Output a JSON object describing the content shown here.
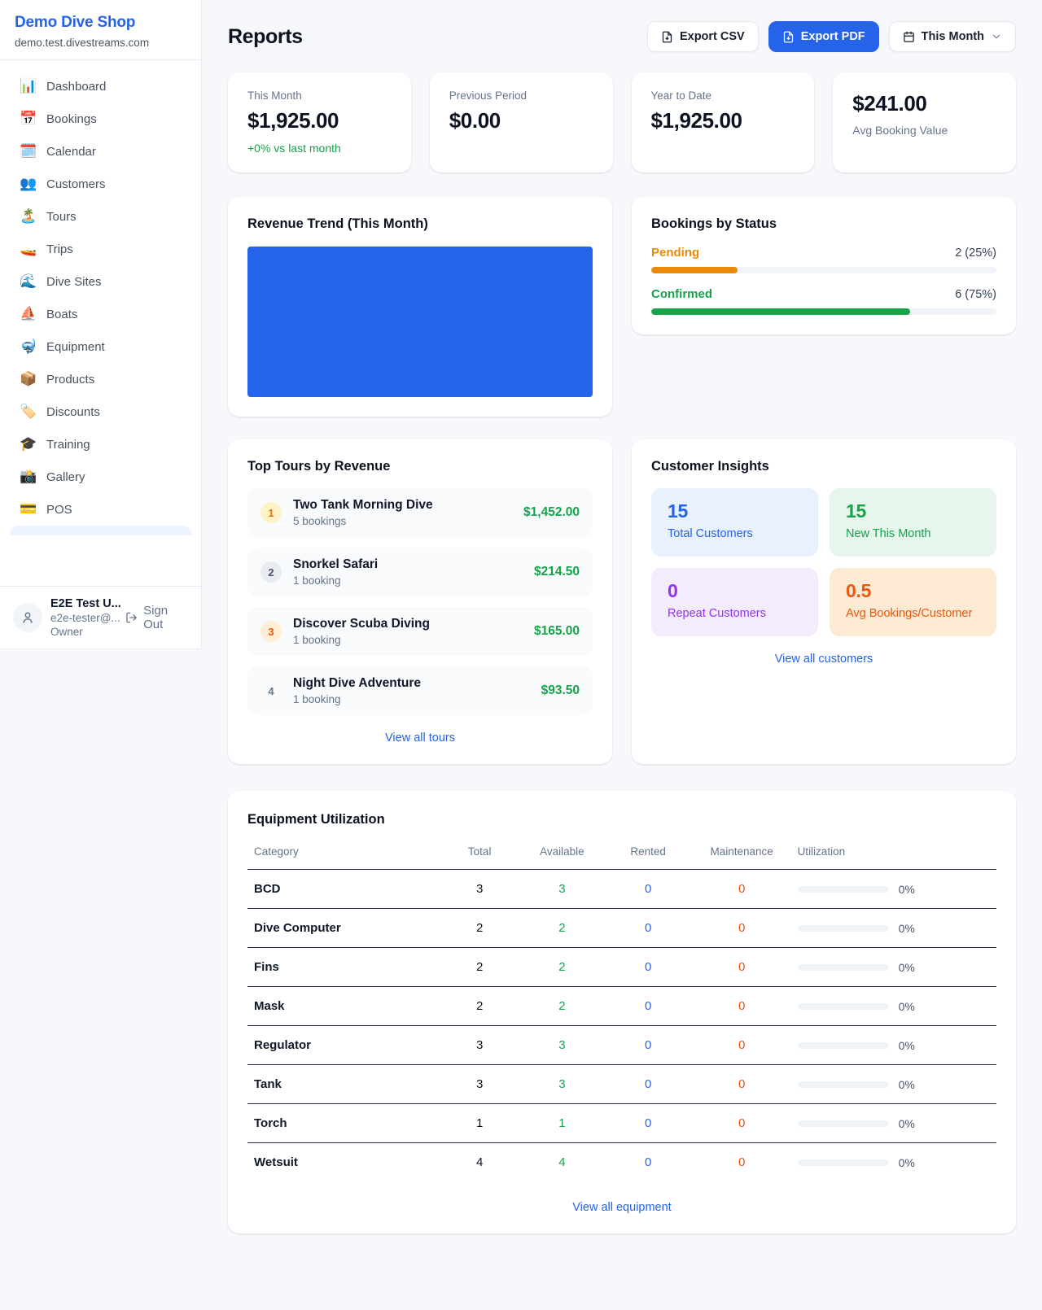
{
  "sidebar": {
    "shop_name": "Demo Dive Shop",
    "domain": "demo.test.divestreams.com",
    "items": [
      {
        "label": "Dashboard",
        "glyph": "📊"
      },
      {
        "label": "Bookings",
        "glyph": "📅"
      },
      {
        "label": "Calendar",
        "glyph": "🗓️"
      },
      {
        "label": "Customers",
        "glyph": "👥"
      },
      {
        "label": "Tours",
        "glyph": "🏝️"
      },
      {
        "label": "Trips",
        "glyph": "🚤"
      },
      {
        "label": "Dive Sites",
        "glyph": "🌊"
      },
      {
        "label": "Boats",
        "glyph": "⛵"
      },
      {
        "label": "Equipment",
        "glyph": "🤿"
      },
      {
        "label": "Products",
        "glyph": "📦"
      },
      {
        "label": "Discounts",
        "glyph": "🏷️"
      },
      {
        "label": "Training",
        "glyph": "🎓"
      },
      {
        "label": "Gallery",
        "glyph": "📸"
      },
      {
        "label": "POS",
        "glyph": "💳"
      }
    ],
    "user": {
      "name": "E2E Test U...",
      "email": "e2e-tester@...",
      "role": "Owner",
      "sign_out_label": "Sign Out"
    }
  },
  "header": {
    "title": "Reports",
    "export_csv_label": "Export CSV",
    "export_pdf_label": "Export PDF",
    "period_label": "This Month"
  },
  "stats": [
    {
      "label": "This Month",
      "value": "$1,925.00",
      "sub": "+0% vs last month"
    },
    {
      "label": "Previous Period",
      "value": "$0.00"
    },
    {
      "label": "Year to Date",
      "value": "$1,925.00"
    },
    {
      "label": "Avg Booking Value",
      "value": "$241.00"
    }
  ],
  "revenue_trend": {
    "title": "Revenue Trend (This Month)",
    "chart_color": "#2563eb"
  },
  "bookings_by_status": {
    "title": "Bookings by Status",
    "rows": [
      {
        "label": "Pending",
        "value_text": "2 (25%)",
        "percent": 25,
        "color": "#ea8a08"
      },
      {
        "label": "Confirmed",
        "value_text": "6 (75%)",
        "percent": 75,
        "color": "#16a34a"
      }
    ]
  },
  "top_tours": {
    "title": "Top Tours by Revenue",
    "link_label": "View all tours",
    "items": [
      {
        "rank": "1",
        "name": "Two Tank Morning Dive",
        "bookings": "5 bookings",
        "amount": "$1,452.00",
        "badge_bg": "#fef3c7",
        "badge_color": "#d97706"
      },
      {
        "rank": "2",
        "name": "Snorkel Safari",
        "bookings": "1 booking",
        "amount": "$214.50",
        "badge_bg": "#e8ebef",
        "badge_color": "#475569"
      },
      {
        "rank": "3",
        "name": "Discover Scuba Diving",
        "bookings": "1 booking",
        "amount": "$165.00",
        "badge_bg": "#ffedd5",
        "badge_color": "#ea580c"
      },
      {
        "rank": "4",
        "name": "Night Dive Adventure",
        "bookings": "1 booking",
        "amount": "$93.50",
        "badge_bg": "transparent",
        "badge_color": "#64748b"
      }
    ]
  },
  "customer_insights": {
    "title": "Customer Insights",
    "link_label": "View all customers",
    "tiles": [
      {
        "value": "15",
        "label": "Total Customers",
        "bg": "#e8f1fd",
        "color": "#2563eb"
      },
      {
        "value": "15",
        "label": "New This Month",
        "bg": "#e6f6ec",
        "color": "#16a34a"
      },
      {
        "value": "0",
        "label": "Repeat Customers",
        "bg": "#f4ecfd",
        "color": "#9333ea"
      },
      {
        "value": "0.5",
        "label": "Avg Bookings/Customer",
        "bg": "#fcead3",
        "color": "#ea580c"
      }
    ]
  },
  "equipment": {
    "title": "Equipment Utilization",
    "link_label": "View all equipment",
    "columns": [
      "Category",
      "Total",
      "Available",
      "Rented",
      "Maintenance",
      "Utilization"
    ],
    "rows": [
      {
        "category": "BCD",
        "total": "3",
        "available": "3",
        "rented": "0",
        "maintenance": "0",
        "utilization": "0%",
        "util_percent": 0
      },
      {
        "category": "Dive Computer",
        "total": "2",
        "available": "2",
        "rented": "0",
        "maintenance": "0",
        "utilization": "0%",
        "util_percent": 0
      },
      {
        "category": "Fins",
        "total": "2",
        "available": "2",
        "rented": "0",
        "maintenance": "0",
        "utilization": "0%",
        "util_percent": 0
      },
      {
        "category": "Mask",
        "total": "2",
        "available": "2",
        "rented": "0",
        "maintenance": "0",
        "utilization": "0%",
        "util_percent": 0
      },
      {
        "category": "Regulator",
        "total": "3",
        "available": "3",
        "rented": "0",
        "maintenance": "0",
        "utilization": "0%",
        "util_percent": 0
      },
      {
        "category": "Tank",
        "total": "3",
        "available": "3",
        "rented": "0",
        "maintenance": "0",
        "utilization": "0%",
        "util_percent": 0
      },
      {
        "category": "Torch",
        "total": "1",
        "available": "1",
        "rented": "0",
        "maintenance": "0",
        "utilization": "0%",
        "util_percent": 0
      },
      {
        "category": "Wetsuit",
        "total": "4",
        "available": "4",
        "rented": "0",
        "maintenance": "0",
        "utilization": "0%",
        "util_percent": 0
      }
    ]
  },
  "colors": {
    "accent": "#2563eb",
    "green": "#16a34a",
    "pending_orange": "#ea8a08",
    "deep_orange": "#ea580c",
    "purple": "#9333ea"
  }
}
